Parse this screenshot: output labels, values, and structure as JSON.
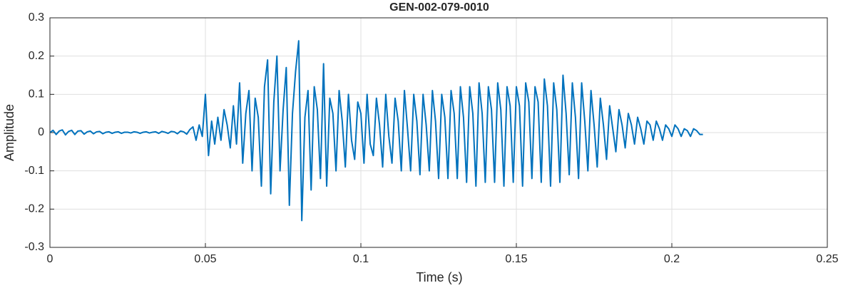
{
  "chart_data": {
    "type": "line",
    "title": "GEN-002-079-0010",
    "x_label": "Time (s)",
    "y_label": "Amplitude",
    "color": "#0072bd",
    "grid": true,
    "xlim": [
      0,
      0.25
    ],
    "xticks": [
      0,
      0.05,
      0.1,
      0.15,
      0.2,
      0.25
    ],
    "ylim": [
      -0.3,
      0.3
    ],
    "yticks": [
      -0.3,
      -0.2,
      -0.1,
      0,
      0.1,
      0.2,
      0.3
    ],
    "x": [
      0,
      0.001,
      0.002,
      0.003,
      0.004,
      0.005,
      0.006,
      0.007,
      0.008,
      0.009,
      0.01,
      0.011,
      0.012,
      0.013,
      0.014,
      0.015,
      0.016,
      0.017,
      0.018,
      0.019,
      0.02,
      0.021,
      0.022,
      0.023,
      0.024,
      0.025,
      0.026,
      0.027,
      0.028,
      0.029,
      0.03,
      0.031,
      0.032,
      0.033,
      0.034,
      0.035,
      0.036,
      0.037,
      0.038,
      0.039,
      0.04,
      0.041,
      0.042,
      0.043,
      0.044,
      0.045,
      0.046,
      0.047,
      0.048,
      0.049,
      0.05,
      0.051,
      0.052,
      0.053,
      0.054,
      0.055,
      0.056,
      0.057,
      0.058,
      0.059,
      0.06,
      0.061,
      0.062,
      0.063,
      0.064,
      0.065,
      0.066,
      0.067,
      0.068,
      0.069,
      0.07,
      0.071,
      0.072,
      0.073,
      0.074,
      0.075,
      0.076,
      0.077,
      0.078,
      0.079,
      0.08,
      0.081,
      0.082,
      0.083,
      0.084,
      0.085,
      0.086,
      0.087,
      0.088,
      0.089,
      0.09,
      0.091,
      0.092,
      0.093,
      0.094,
      0.095,
      0.096,
      0.097,
      0.098,
      0.099,
      0.1,
      0.101,
      0.102,
      0.103,
      0.104,
      0.105,
      0.106,
      0.107,
      0.108,
      0.109,
      0.11,
      0.111,
      0.112,
      0.113,
      0.114,
      0.115,
      0.116,
      0.117,
      0.118,
      0.119,
      0.12,
      0.121,
      0.122,
      0.123,
      0.124,
      0.125,
      0.126,
      0.127,
      0.128,
      0.129,
      0.13,
      0.131,
      0.132,
      0.133,
      0.134,
      0.135,
      0.136,
      0.137,
      0.138,
      0.139,
      0.14,
      0.141,
      0.142,
      0.143,
      0.144,
      0.145,
      0.146,
      0.147,
      0.148,
      0.149,
      0.15,
      0.151,
      0.152,
      0.153,
      0.154,
      0.155,
      0.156,
      0.157,
      0.158,
      0.159,
      0.16,
      0.161,
      0.162,
      0.163,
      0.164,
      0.165,
      0.166,
      0.167,
      0.168,
      0.169,
      0.17,
      0.171,
      0.172,
      0.173,
      0.174,
      0.175,
      0.176,
      0.177,
      0.178,
      0.179,
      0.18,
      0.181,
      0.182,
      0.183,
      0.184,
      0.185,
      0.186,
      0.187,
      0.188,
      0.189,
      0.19,
      0.191,
      0.192,
      0.193,
      0.194,
      0.195,
      0.196,
      0.197,
      0.198,
      0.199,
      0.2,
      0.201,
      0.202,
      0.203,
      0.204,
      0.205,
      0.206,
      0.207,
      0.208,
      0.209,
      0.21
    ],
    "values": [
      0,
      0.006,
      -0.005,
      0.004,
      0.007,
      -0.006,
      0.003,
      0.006,
      -0.005,
      0.004,
      0.005,
      -0.004,
      0.002,
      0.004,
      -0.003,
      0.002,
      0.003,
      -0.003,
      0.001,
      0.002,
      -0.002,
      0.001,
      0.002,
      -0.002,
      0.001,
      0.001,
      -0.001,
      0.002,
      0.001,
      -0.002,
      0.001,
      0.002,
      -0.001,
      0.001,
      0.002,
      -0.002,
      0.003,
      0.001,
      -0.002,
      0.003,
      0.002,
      -0.003,
      0.004,
      0.002,
      -0.004,
      0.008,
      0.015,
      -0.02,
      0.02,
      -0.01,
      0.1,
      -0.06,
      0.03,
      -0.03,
      0.04,
      -0.02,
      0.06,
      0.02,
      -0.04,
      0.07,
      -0.03,
      0.13,
      -0.08,
      0.05,
      0.11,
      -0.1,
      0.09,
      0.04,
      -0.14,
      0.12,
      0.19,
      -0.16,
      0.08,
      0.2,
      -0.1,
      0.06,
      0.17,
      -0.19,
      0.05,
      0.16,
      0.24,
      -0.23,
      0.04,
      0.11,
      -0.15,
      0.12,
      0.06,
      -0.12,
      0.18,
      -0.14,
      0.09,
      0.05,
      -0.1,
      0.11,
      0.03,
      -0.09,
      0.1,
      -0.02,
      -0.07,
      0.08,
      0.05,
      -0.08,
      0.1,
      -0.03,
      -0.06,
      0.09,
      0.02,
      -0.09,
      0.1,
      -0.01,
      -0.08,
      0.09,
      0.03,
      -0.1,
      0.11,
      0.01,
      -0.1,
      0.1,
      0.03,
      -0.11,
      0.1,
      0.02,
      -0.1,
      0.11,
      0.03,
      -0.12,
      0.1,
      0.04,
      -0.12,
      0.11,
      0.05,
      -0.12,
      0.12,
      0.04,
      -0.13,
      0.12,
      0.05,
      -0.14,
      0.13,
      0.05,
      -0.13,
      0.12,
      0.06,
      -0.13,
      0.13,
      0.06,
      -0.14,
      0.12,
      0.07,
      -0.13,
      0.12,
      0.07,
      -0.14,
      0.13,
      0.08,
      -0.12,
      0.12,
      0.08,
      -0.13,
      0.14,
      0.07,
      -0.14,
      0.13,
      0.06,
      -0.13,
      0.15,
      0.05,
      -0.11,
      0.13,
      0.04,
      -0.12,
      0.13,
      0.03,
      -0.1,
      0.11,
      0.02,
      -0.09,
      0.09,
      0.02,
      -0.07,
      0.07,
      0.01,
      -0.05,
      0.06,
      0.02,
      -0.04,
      0.05,
      0.02,
      -0.03,
      0.04,
      0.01,
      -0.03,
      0.03,
      0.02,
      -0.02,
      0.03,
      0.01,
      -0.02,
      0.02,
      0.01,
      -0.01,
      0.02,
      0.01,
      -0.01,
      0.01,
      0.005,
      -0.01,
      0.01,
      0.005,
      -0.005,
      -0.005
    ]
  }
}
